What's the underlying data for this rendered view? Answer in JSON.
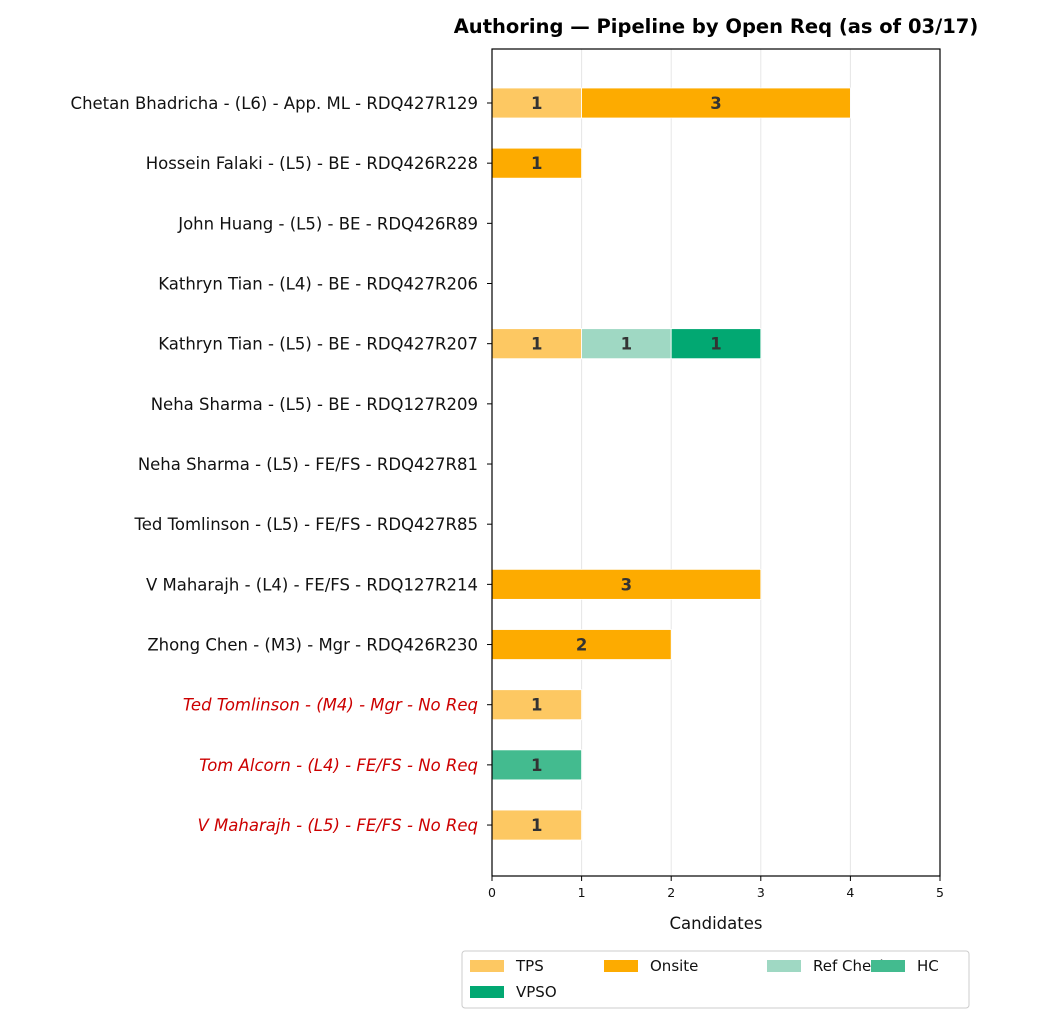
{
  "chart_data": {
    "type": "bar",
    "orientation": "horizontal",
    "stacked": true,
    "title": "Authoring — Pipeline by Open Req (as of 03/17)",
    "xlabel": "Candidates",
    "ylabel": "",
    "xlim": [
      0,
      5
    ],
    "xticks": [
      "0",
      "1",
      "2",
      "3",
      "4",
      "5"
    ],
    "grid": "vertical",
    "legend_position": "bottom-center",
    "categories": [
      "Chetan Bhadricha - (L6) - App. ML - RDQ427R129",
      "Hossein Falaki - (L5) - BE - RDQ426R228",
      "John Huang - (L5) - BE - RDQ426R89",
      "Kathryn Tian - (L4) - BE - RDQ427R206",
      "Kathryn Tian - (L5) - BE - RDQ427R207",
      "Neha Sharma - (L5) - BE - RDQ127R209",
      "Neha Sharma - (L5) - FE/FS - RDQ427R81",
      "Ted Tomlinson - (L5) - FE/FS - RDQ427R85",
      "V Maharajh - (L4) - FE/FS - RDQ127R214",
      "Zhong Chen - (M3) - Mgr - RDQ426R230",
      "Ted Tomlinson - (M4) - Mgr - No Req",
      "Tom Alcorn - (L4) - FE/FS - No Req",
      "V Maharajh - (L5) - FE/FS - No Req"
    ],
    "no_req_flags": [
      false,
      false,
      false,
      false,
      false,
      false,
      false,
      false,
      false,
      false,
      true,
      true,
      true
    ],
    "series": [
      {
        "name": "TPS",
        "color": "#fdc862",
        "values": [
          1,
          0,
          0,
          0,
          1,
          0,
          0,
          0,
          0,
          0,
          1,
          0,
          1
        ]
      },
      {
        "name": "Onsite",
        "color": "#fdab00",
        "values": [
          3,
          1,
          0,
          0,
          0,
          0,
          0,
          0,
          3,
          2,
          0,
          0,
          0
        ]
      },
      {
        "name": "Ref Check",
        "color": "#9fd8c3",
        "values": [
          0,
          0,
          0,
          0,
          1,
          0,
          0,
          0,
          0,
          0,
          0,
          0,
          0
        ]
      },
      {
        "name": "HC",
        "color": "#43bb8f",
        "values": [
          0,
          0,
          0,
          0,
          0,
          0,
          0,
          0,
          0,
          0,
          0,
          1,
          0
        ]
      },
      {
        "name": "VPSO",
        "color": "#02a872",
        "values": [
          0,
          0,
          0,
          0,
          1,
          0,
          0,
          0,
          0,
          0,
          0,
          0,
          0
        ]
      }
    ],
    "colors": {
      "no_req_label": "#cc0000",
      "bar_label": "#333333",
      "grid": "#e6e6e6"
    }
  }
}
